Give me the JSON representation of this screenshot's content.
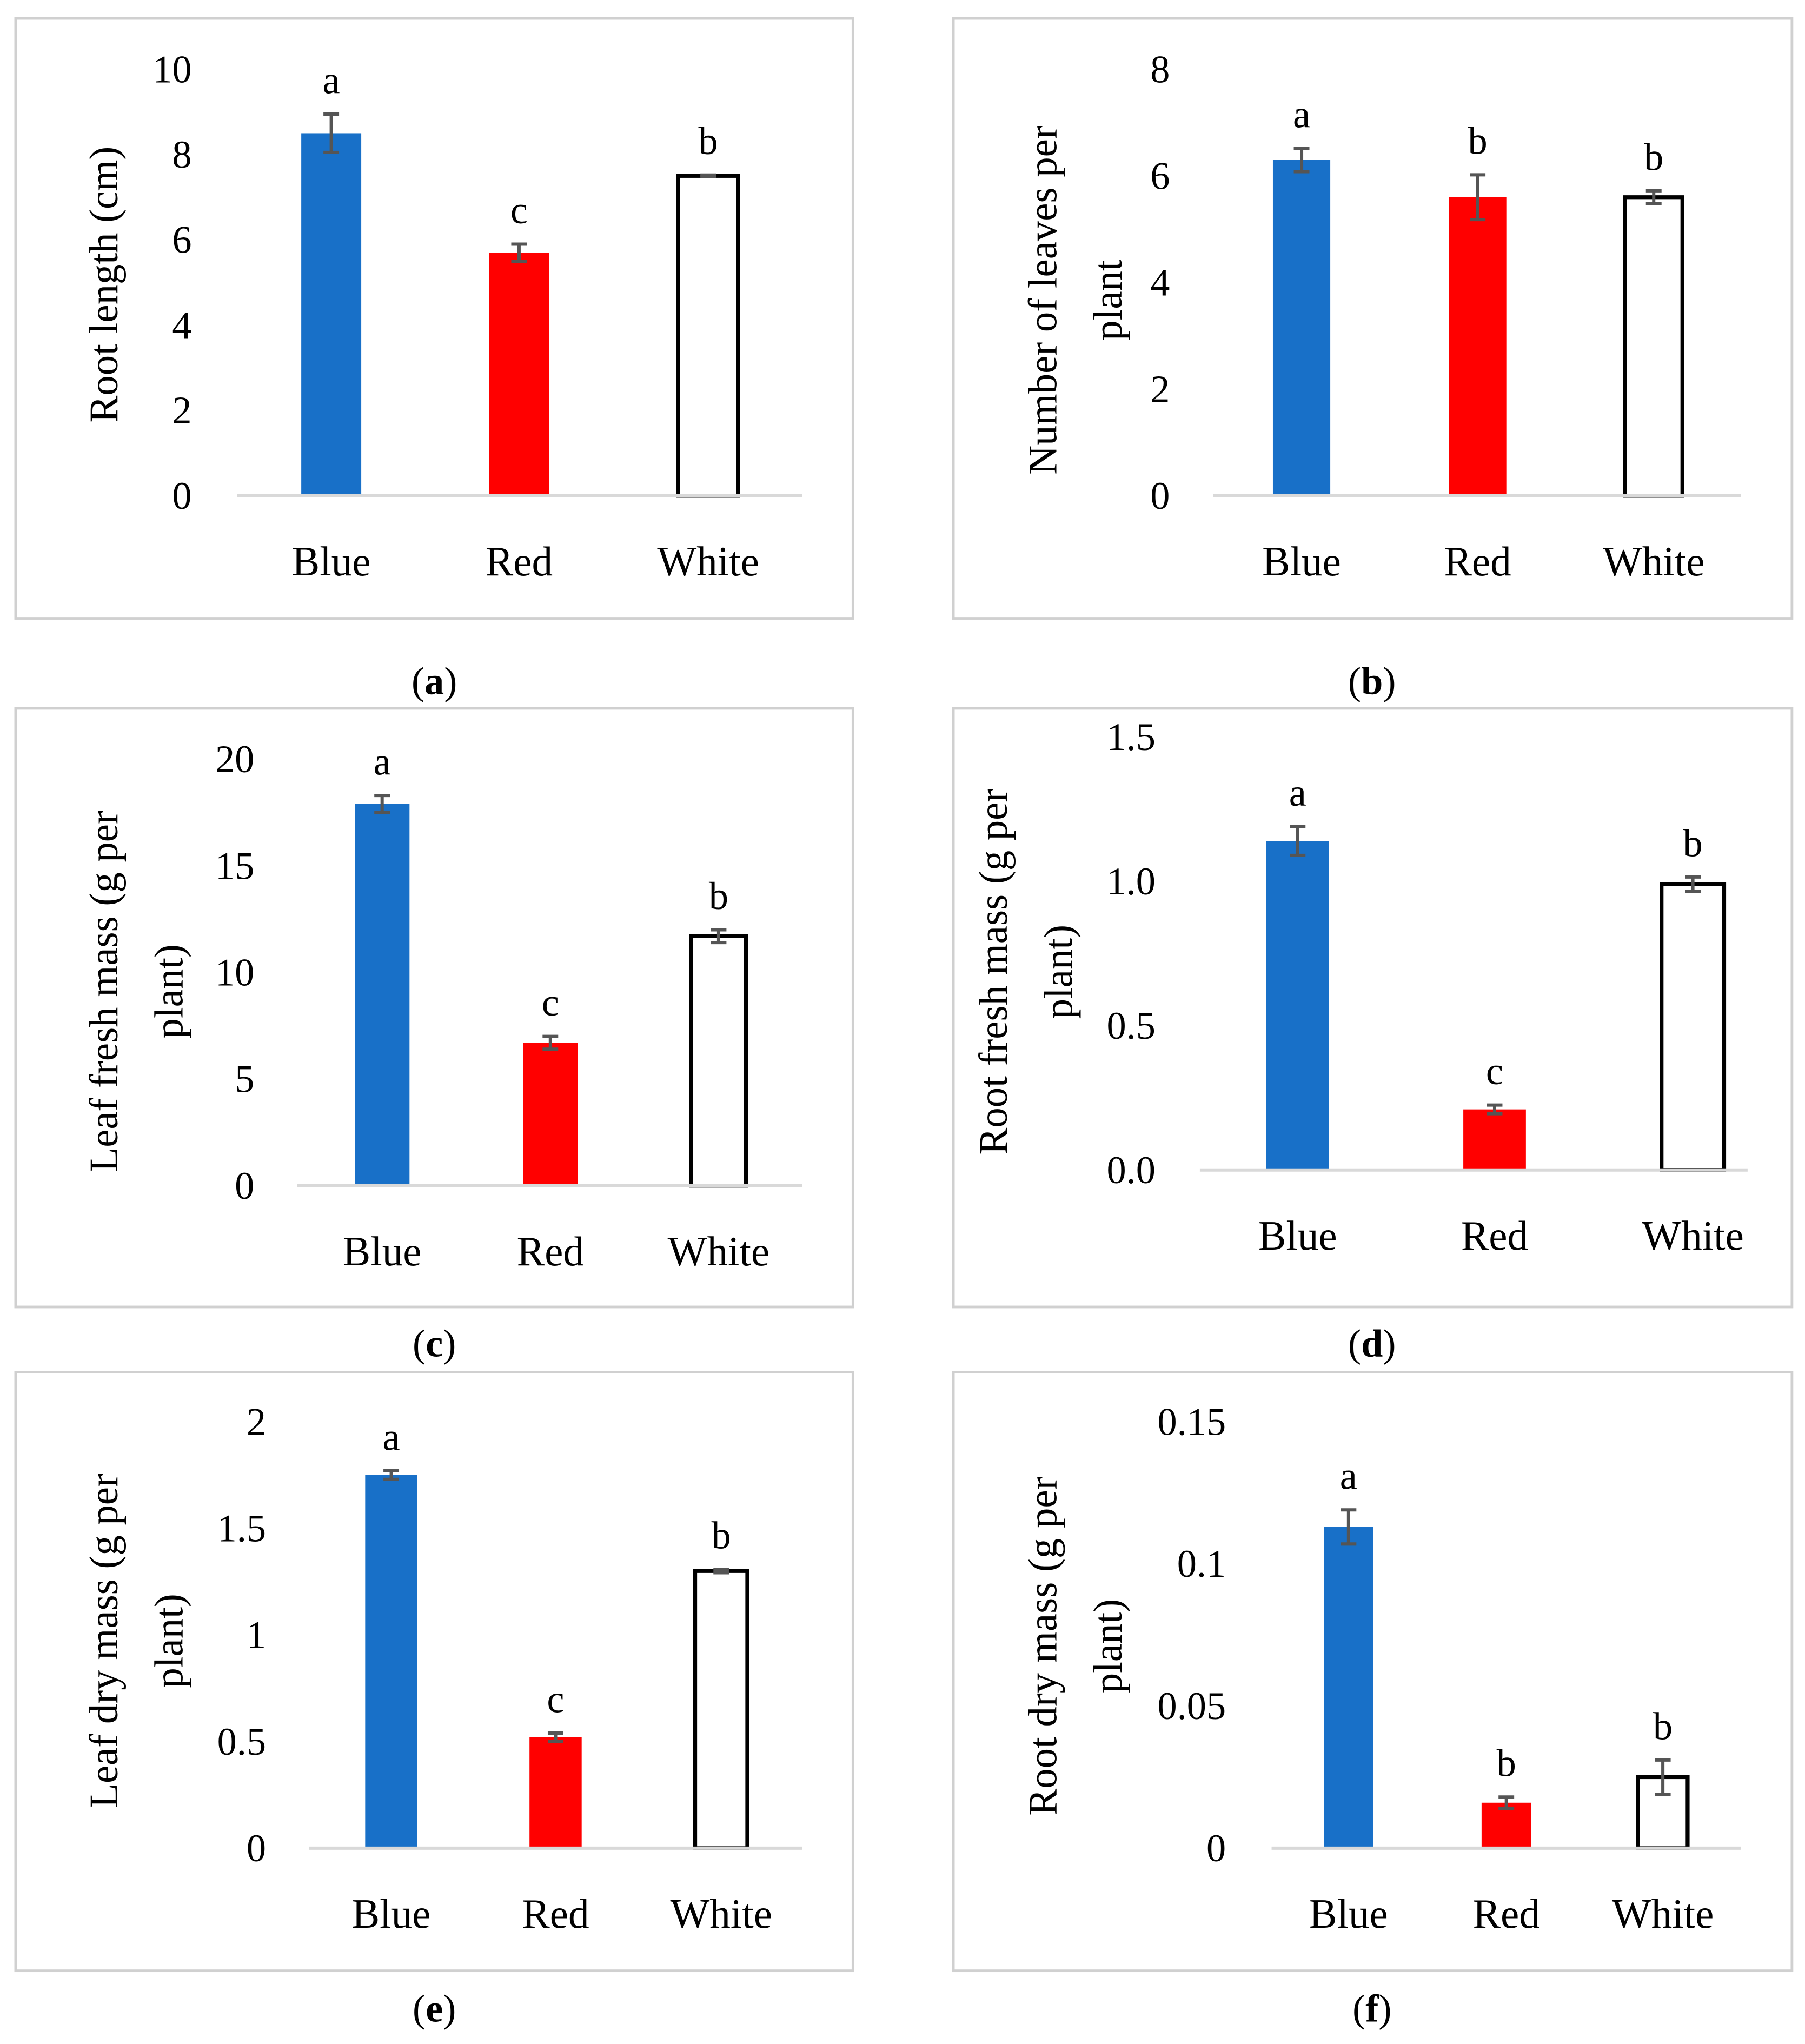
{
  "colors": {
    "blue": "#1870C8",
    "red": "#FF0000",
    "white": "#FFFFFF",
    "error": "#555555",
    "axis": "#D9D9D9",
    "frame": "#D0D0D0"
  },
  "chart_data": [
    {
      "panel": "a",
      "caption": [
        "(",
        "a",
        ")"
      ],
      "type": "bar",
      "ylabel": [
        "Root length (cm)"
      ],
      "categories": [
        "Blue",
        "Red",
        "White"
      ],
      "values": [
        8.5,
        5.7,
        7.5
      ],
      "errors": [
        0.45,
        0.2,
        0.02
      ],
      "significance": [
        "a",
        "c",
        "b"
      ],
      "ylim": [
        0,
        10
      ],
      "yticks": [
        "0",
        "2",
        "4",
        "6",
        "8",
        "10"
      ],
      "ytick_values": [
        0,
        2,
        4,
        6,
        8,
        10
      ]
    },
    {
      "panel": "b",
      "caption": [
        "(",
        "b",
        ")"
      ],
      "type": "bar",
      "ylabel": [
        "Number of leaves per",
        "plant"
      ],
      "categories": [
        "Blue",
        "Red",
        "White"
      ],
      "values": [
        6.3,
        5.6,
        5.6
      ],
      "errors": [
        0.22,
        0.42,
        0.12
      ],
      "significance": [
        "a",
        "b",
        "b"
      ],
      "ylim": [
        0,
        8
      ],
      "yticks": [
        "0",
        "2",
        "4",
        "6",
        "8"
      ],
      "ytick_values": [
        0,
        2,
        4,
        6,
        8
      ]
    },
    {
      "panel": "c",
      "caption": [
        "(",
        "c",
        ")"
      ],
      "type": "bar",
      "ylabel": [
        "Leaf fresh mass (g per",
        "plant)"
      ],
      "categories": [
        "Blue",
        "Red",
        "White"
      ],
      "values": [
        17.9,
        6.7,
        11.7
      ],
      "errors": [
        0.4,
        0.3,
        0.3
      ],
      "significance": [
        "a",
        "c",
        "b"
      ],
      "ylim": [
        0,
        20
      ],
      "yticks": [
        "0",
        "5",
        "10",
        "15",
        "20"
      ],
      "ytick_values": [
        0,
        5,
        10,
        15,
        20
      ]
    },
    {
      "panel": "d",
      "caption": [
        "(",
        "d",
        ")"
      ],
      "type": "bar",
      "ylabel": [
        "Root fresh mass (g per",
        "plant)"
      ],
      "categories": [
        "Blue",
        "Red",
        "White"
      ],
      "values": [
        1.14,
        0.21,
        0.99
      ],
      "errors": [
        0.05,
        0.015,
        0.025
      ],
      "significance": [
        "a",
        "c",
        "b"
      ],
      "ylim": [
        0,
        1.5
      ],
      "yticks": [
        "0.0",
        "0.5",
        "1.0",
        "1.5"
      ],
      "ytick_values": [
        0,
        0.5,
        1.0,
        1.5
      ]
    },
    {
      "panel": "e",
      "caption": [
        "(",
        "e",
        ")"
      ],
      "type": "bar",
      "ylabel": [
        "Leaf dry mass (g per",
        "plant)"
      ],
      "categories": [
        "Blue",
        "Red",
        "White"
      ],
      "values": [
        1.75,
        0.52,
        1.3
      ],
      "errors": [
        0.02,
        0.02,
        0.008
      ],
      "significance": [
        "a",
        "c",
        "b"
      ],
      "ylim": [
        0,
        2
      ],
      "yticks": [
        "0",
        "0.5",
        "1",
        "1.5",
        "2"
      ],
      "ytick_values": [
        0,
        0.5,
        1,
        1.5,
        2
      ]
    },
    {
      "panel": "f",
      "caption": [
        "(",
        "f",
        ")"
      ],
      "type": "bar",
      "ylabel": [
        "Root dry mass (g per",
        "plant)"
      ],
      "categories": [
        "Blue",
        "Red",
        "White"
      ],
      "values": [
        0.113,
        0.016,
        0.025
      ],
      "errors": [
        0.006,
        0.002,
        0.006
      ],
      "significance": [
        "a",
        "b",
        "b"
      ],
      "ylim": [
        0,
        0.15
      ],
      "yticks": [
        "0",
        "0.05",
        "0.1",
        "0.15"
      ],
      "ytick_values": [
        0,
        0.05,
        0.1,
        0.15
      ]
    }
  ]
}
